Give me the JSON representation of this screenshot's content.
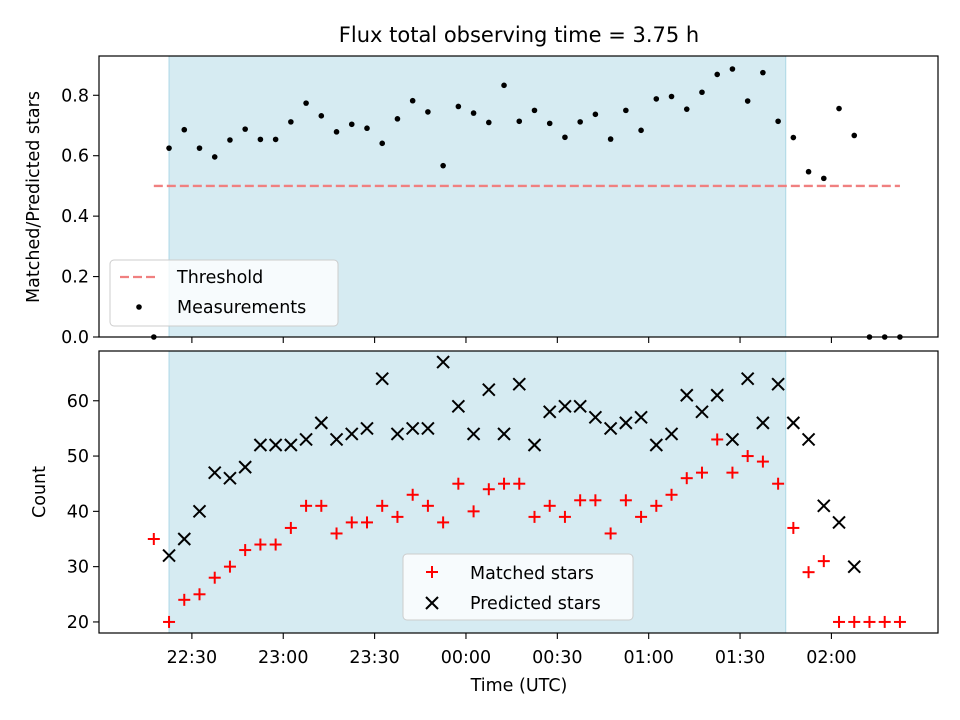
{
  "title": "Flux total observing time = 3.75 h",
  "colors": {
    "shade": "#add8e6",
    "threshold": "#f08080",
    "measurement": "#000000",
    "matched": "#ff0000",
    "predicted": "#000000"
  },
  "chart_data": [
    {
      "type": "scatter",
      "title": "Flux total observing time = 3.75 h",
      "xlabel": "",
      "ylabel": "Matched/Predicted stars",
      "ylim": [
        0,
        0.93
      ],
      "yticks": [
        0.0,
        0.2,
        0.4,
        0.6,
        0.8
      ],
      "ytick_labels": [
        "0.0",
        "0.2",
        "0.4",
        "0.6",
        "0.8"
      ],
      "shade_start_min": 22.5,
      "shade_end_min": 225,
      "threshold": {
        "name": "Threshold",
        "value": 0.5,
        "x_start_min": 17.5,
        "x_end_min": 262.5
      },
      "legend": {
        "placement": "lower-left",
        "entries": [
          "Threshold",
          "Measurements"
        ]
      },
      "series": [
        {
          "name": "Measurements",
          "x_min": [
            17.5,
            22.5,
            27.5,
            32.5,
            37.5,
            42.5,
            47.5,
            52.5,
            57.5,
            62.5,
            67.5,
            72.5,
            77.5,
            82.5,
            87.5,
            92.5,
            97.5,
            102.5,
            107.5,
            112.5,
            117.5,
            122.5,
            127.5,
            132.5,
            137.5,
            142.5,
            147.5,
            152.5,
            157.5,
            162.5,
            167.5,
            172.5,
            177.5,
            182.5,
            187.5,
            192.5,
            197.5,
            202.5,
            207.5,
            212.5,
            217.5,
            222.5,
            227.5,
            232.5,
            237.5,
            242.5,
            247.5,
            252.5,
            257.5,
            262.5
          ],
          "y": [
            0.0,
            0.625,
            0.686,
            0.625,
            0.596,
            0.652,
            0.688,
            0.654,
            0.654,
            0.712,
            0.774,
            0.732,
            0.679,
            0.704,
            0.691,
            0.641,
            0.722,
            0.782,
            0.745,
            0.567,
            0.763,
            0.741,
            0.71,
            0.833,
            0.714,
            0.75,
            0.707,
            0.661,
            0.712,
            0.737,
            0.655,
            0.75,
            0.684,
            0.788,
            0.796,
            0.754,
            0.81,
            0.869,
            0.887,
            0.781,
            0.875,
            0.714,
            0.66,
            0.547,
            0.525,
            0.756,
            0.667,
            0.0,
            0.0,
            0.0
          ]
        }
      ]
    },
    {
      "type": "scatter",
      "xlabel": "Time (UTC)",
      "ylabel": "Count",
      "ylim": [
        18,
        69
      ],
      "yticks": [
        20,
        30,
        40,
        50,
        60
      ],
      "ytick_labels": [
        "20",
        "30",
        "40",
        "50",
        "60"
      ],
      "xlim_min": [
        -0.5,
        275
      ],
      "xticks_min": [
        30,
        60,
        90,
        120,
        150,
        180,
        210,
        240
      ],
      "xtick_labels": [
        "22:30",
        "23:00",
        "23:30",
        "00:00",
        "00:30",
        "01:00",
        "01:30",
        "02:00"
      ],
      "shade_start_min": 22.5,
      "shade_end_min": 225,
      "legend": {
        "placement": "lower-center",
        "entries": [
          "Matched stars",
          "Predicted stars"
        ]
      },
      "series": [
        {
          "name": "Matched stars",
          "marker": "plus",
          "x_min": [
            17.5,
            22.5,
            27.5,
            32.5,
            37.5,
            42.5,
            47.5,
            52.5,
            57.5,
            62.5,
            67.5,
            72.5,
            77.5,
            82.5,
            87.5,
            92.5,
            97.5,
            102.5,
            107.5,
            112.5,
            117.5,
            122.5,
            127.5,
            132.5,
            137.5,
            142.5,
            147.5,
            152.5,
            157.5,
            162.5,
            167.5,
            172.5,
            177.5,
            182.5,
            187.5,
            192.5,
            197.5,
            202.5,
            207.5,
            212.5,
            217.5,
            222.5,
            227.5,
            232.5,
            237.5,
            242.5,
            247.5,
            252.5,
            257.5,
            262.5
          ],
          "y": [
            35,
            20,
            24,
            25,
            28,
            30,
            33,
            34,
            34,
            37,
            41,
            41,
            36,
            38,
            38,
            41,
            39,
            43,
            41,
            38,
            45,
            40,
            44,
            45,
            45,
            39,
            41,
            39,
            42,
            42,
            36,
            42,
            39,
            41,
            43,
            46,
            47,
            53,
            47,
            50,
            49,
            45,
            37,
            29,
            31,
            20,
            20,
            20,
            20,
            20
          ]
        },
        {
          "name": "Predicted stars",
          "marker": "x",
          "x_min": [
            22.5,
            27.5,
            32.5,
            37.5,
            42.5,
            47.5,
            52.5,
            57.5,
            62.5,
            67.5,
            72.5,
            77.5,
            82.5,
            87.5,
            92.5,
            97.5,
            102.5,
            107.5,
            112.5,
            117.5,
            122.5,
            127.5,
            132.5,
            137.5,
            142.5,
            147.5,
            152.5,
            157.5,
            162.5,
            167.5,
            172.5,
            177.5,
            182.5,
            187.5,
            192.5,
            197.5,
            202.5,
            207.5,
            212.5,
            217.5,
            222.5,
            227.5,
            232.5,
            237.5,
            242.5,
            247.5
          ],
          "y": [
            32,
            35,
            40,
            47,
            46,
            48,
            52,
            52,
            52,
            53,
            56,
            53,
            54,
            55,
            64,
            54,
            55,
            55,
            67,
            59,
            54,
            62,
            54,
            63,
            52,
            58,
            59,
            59,
            57,
            55,
            56,
            57,
            52,
            54,
            61,
            58,
            61,
            53,
            64,
            56,
            63,
            56,
            53,
            41,
            38,
            30
          ]
        }
      ]
    }
  ]
}
